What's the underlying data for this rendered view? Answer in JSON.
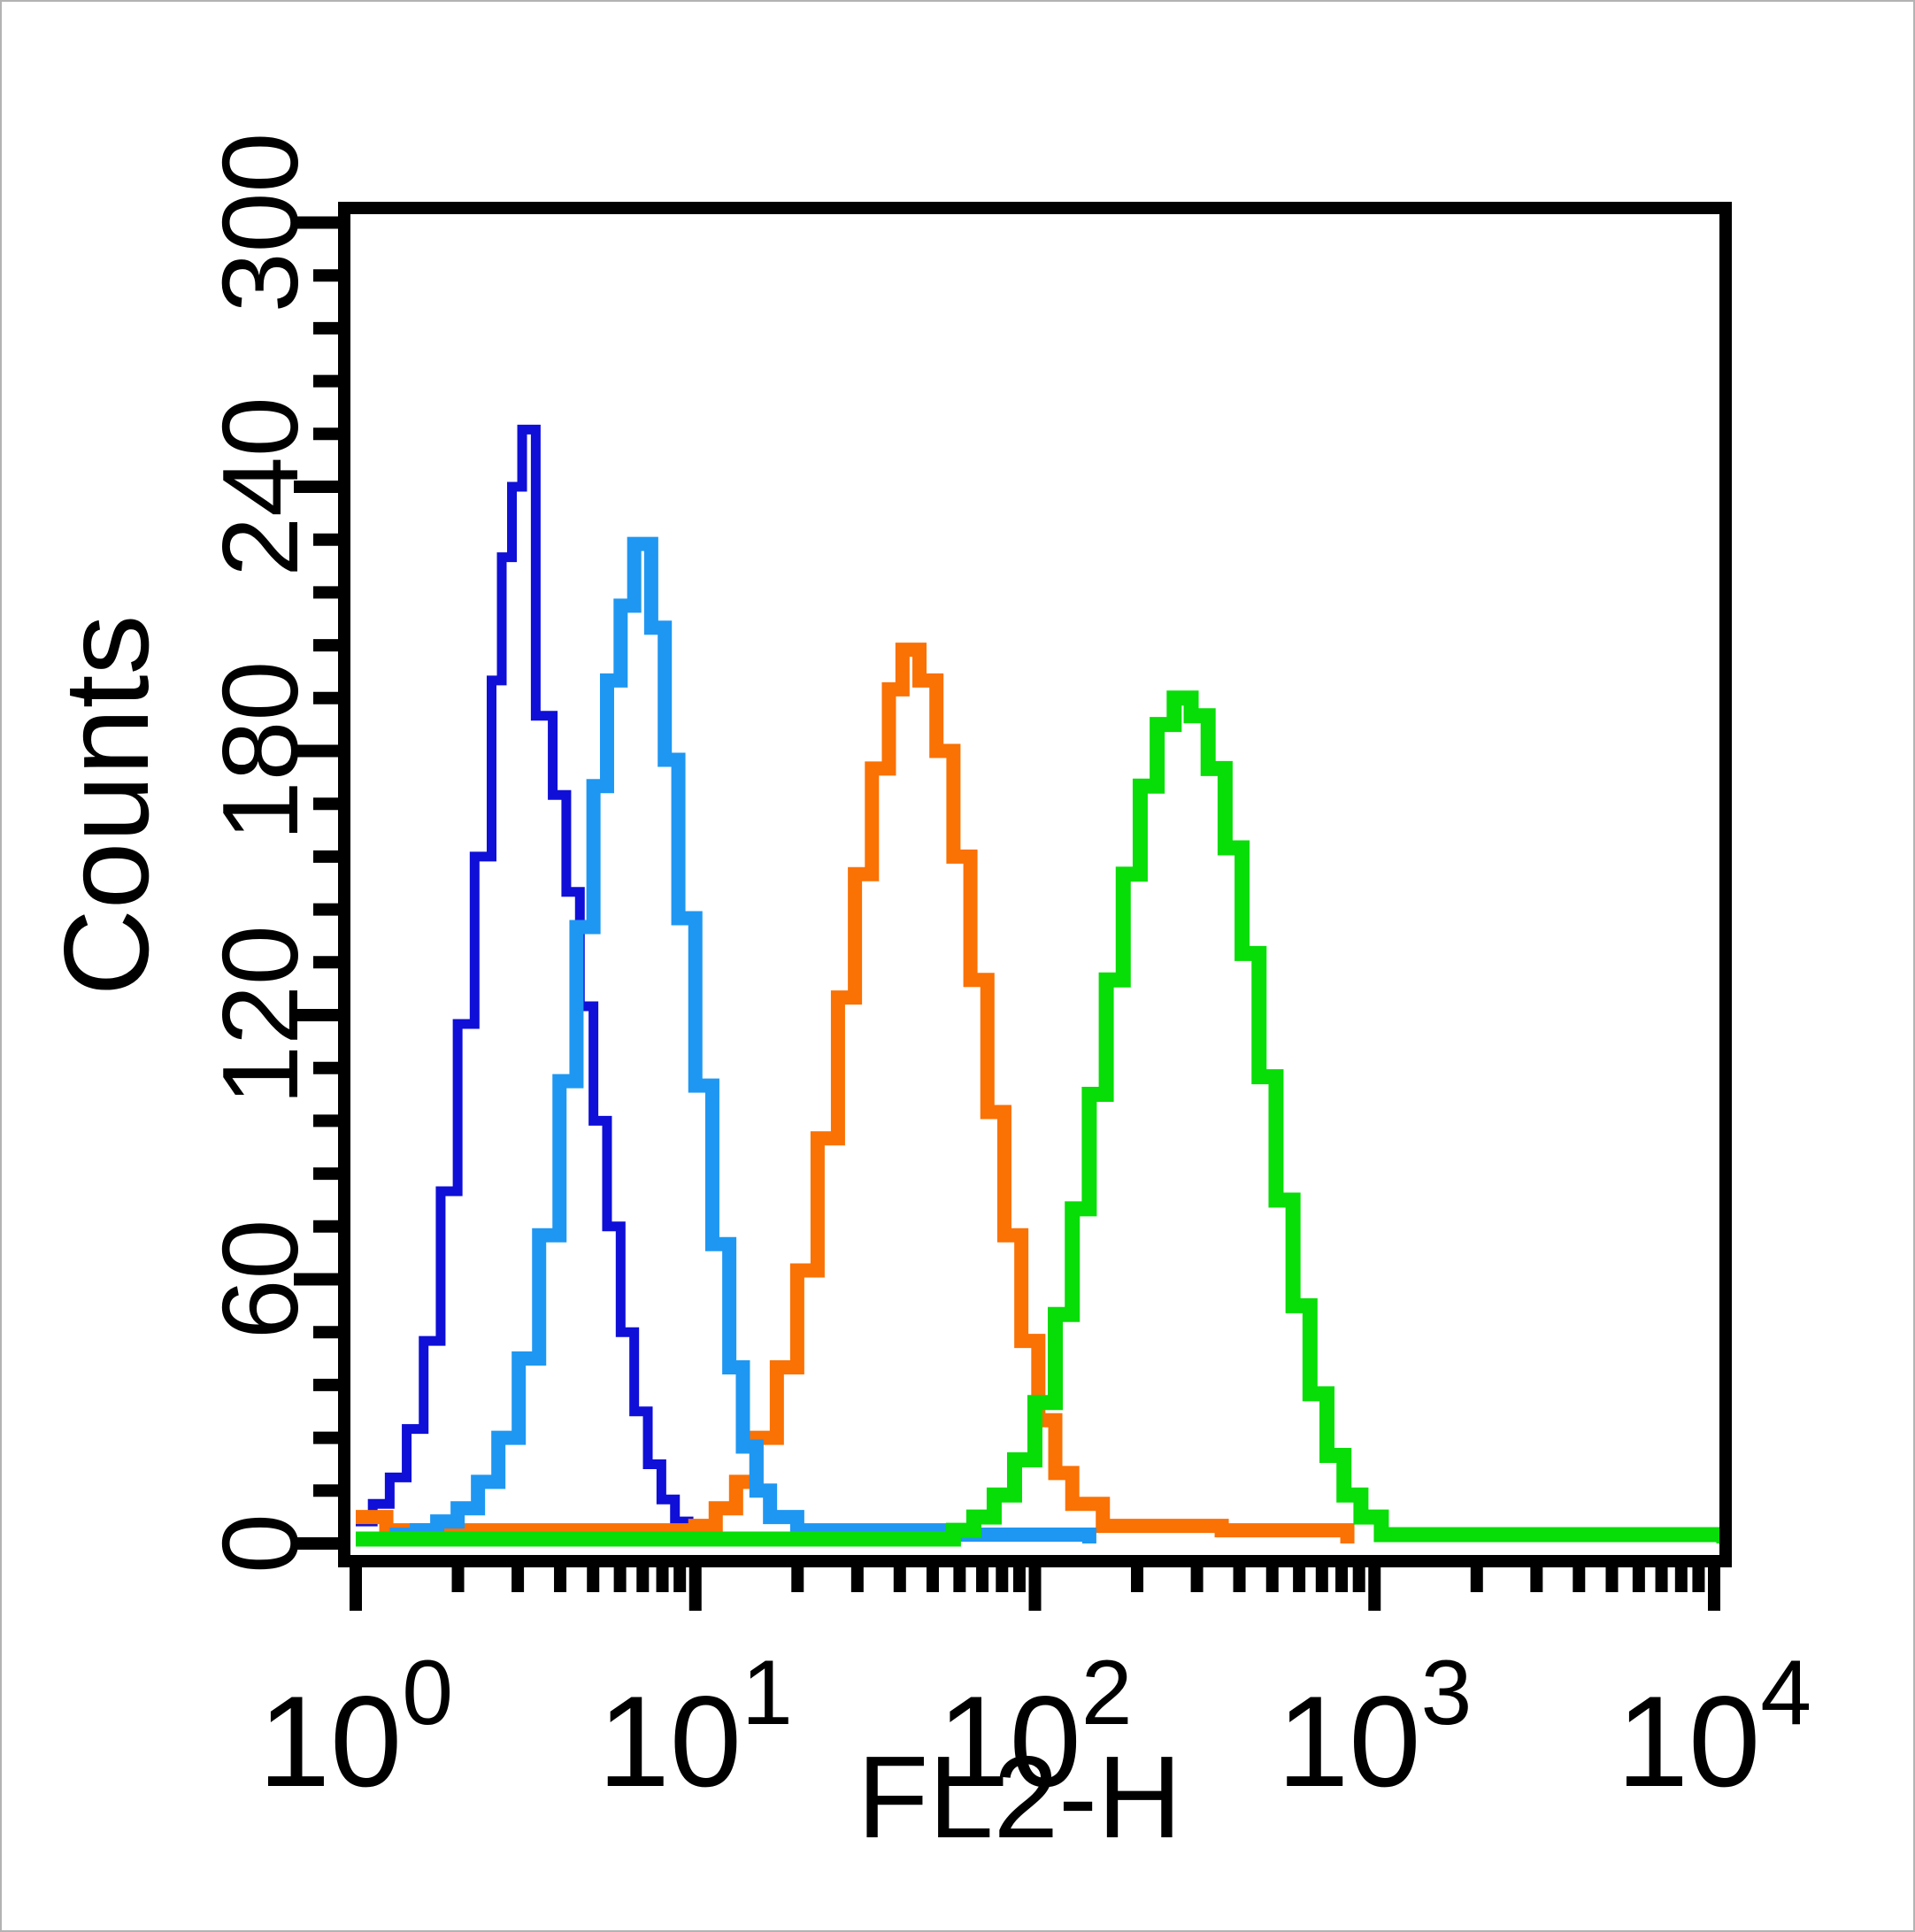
{
  "figure": {
    "background": "#ffffff",
    "outer_border_color": "#b3b3b3",
    "axis_color": "#000000"
  },
  "chart_data": {
    "type": "histogram-step-outline",
    "title": "",
    "xlabel": "FL2-H",
    "ylabel": "Counts",
    "grid": false,
    "legend": null,
    "frame": true,
    "x_axis": {
      "scale": "log10",
      "min": 1,
      "max": 10000,
      "tick_base": "10",
      "tick_exponents": [
        0,
        1,
        2,
        3,
        4
      ],
      "minor_ticks": "mantissa 2-9 each decade"
    },
    "y_axis": {
      "min": 0,
      "max": 300,
      "major_ticks": [
        0,
        60,
        120,
        180,
        240,
        300
      ],
      "tick_labels": [
        "0",
        "60",
        "120",
        "180",
        "240",
        "300"
      ],
      "minor_tick_step": 12
    },
    "series": [
      {
        "name": "navy-histogram",
        "color": "#0f0fd8",
        "line_width": 11,
        "approx_peak": {
          "x": 3.1,
          "count": 253
        },
        "bins_log10_count": [
          [
            0.0,
            5
          ],
          [
            0.05,
            9
          ],
          [
            0.1,
            15
          ],
          [
            0.15,
            26
          ],
          [
            0.2,
            46
          ],
          [
            0.25,
            80
          ],
          [
            0.3,
            118
          ],
          [
            0.35,
            156
          ],
          [
            0.4,
            196
          ],
          [
            0.43,
            224
          ],
          [
            0.46,
            240
          ],
          [
            0.49,
            253
          ],
          [
            0.53,
            188
          ],
          [
            0.58,
            170
          ],
          [
            0.62,
            148
          ],
          [
            0.66,
            122
          ],
          [
            0.7,
            96
          ],
          [
            0.74,
            72
          ],
          [
            0.78,
            48
          ],
          [
            0.82,
            30
          ],
          [
            0.86,
            18
          ],
          [
            0.9,
            10
          ],
          [
            0.94,
            5
          ],
          [
            0.98,
            2
          ],
          [
            1.02,
            0
          ]
        ]
      },
      {
        "name": "orange-histogram",
        "color": "#fa7104",
        "line_width": 16,
        "approx_peak": {
          "x": 41,
          "count": 203
        },
        "bins_log10_count": [
          [
            0.0,
            6
          ],
          [
            0.09,
            3
          ],
          [
            1.0,
            4
          ],
          [
            1.06,
            8
          ],
          [
            1.12,
            14
          ],
          [
            1.18,
            24
          ],
          [
            1.24,
            40
          ],
          [
            1.3,
            62
          ],
          [
            1.36,
            92
          ],
          [
            1.42,
            124
          ],
          [
            1.47,
            152
          ],
          [
            1.52,
            176
          ],
          [
            1.57,
            194
          ],
          [
            1.61,
            203
          ],
          [
            1.66,
            196
          ],
          [
            1.71,
            180
          ],
          [
            1.76,
            156
          ],
          [
            1.81,
            128
          ],
          [
            1.86,
            98
          ],
          [
            1.91,
            70
          ],
          [
            1.96,
            46
          ],
          [
            2.01,
            28
          ],
          [
            2.06,
            16
          ],
          [
            2.11,
            9
          ],
          [
            2.2,
            4
          ],
          [
            2.55,
            3
          ],
          [
            2.92,
            0
          ]
        ]
      },
      {
        "name": "light-blue-histogram",
        "color": "#1e97f2",
        "line_width": 16,
        "approx_peak": {
          "x": 6.6,
          "count": 227
        },
        "bins_log10_count": [
          [
            0.1,
            2
          ],
          [
            0.18,
            3
          ],
          [
            0.24,
            5
          ],
          [
            0.3,
            8
          ],
          [
            0.36,
            14
          ],
          [
            0.42,
            24
          ],
          [
            0.48,
            42
          ],
          [
            0.54,
            70
          ],
          [
            0.6,
            105
          ],
          [
            0.65,
            140
          ],
          [
            0.7,
            172
          ],
          [
            0.74,
            196
          ],
          [
            0.78,
            213
          ],
          [
            0.82,
            227
          ],
          [
            0.87,
            208
          ],
          [
            0.91,
            178
          ],
          [
            0.95,
            142
          ],
          [
            1.0,
            104
          ],
          [
            1.05,
            68
          ],
          [
            1.1,
            40
          ],
          [
            1.14,
            22
          ],
          [
            1.18,
            12
          ],
          [
            1.22,
            6
          ],
          [
            1.3,
            3
          ],
          [
            1.75,
            2
          ],
          [
            2.16,
            0
          ]
        ]
      },
      {
        "name": "green-histogram",
        "color": "#07dd07",
        "line_width": 17,
        "approx_peak": {
          "x": 270,
          "count": 192
        },
        "bins_log10_count": [
          [
            0.0,
            1
          ],
          [
            1.76,
            3
          ],
          [
            1.82,
            6
          ],
          [
            1.88,
            11
          ],
          [
            1.94,
            19
          ],
          [
            2.0,
            32
          ],
          [
            2.06,
            52
          ],
          [
            2.11,
            76
          ],
          [
            2.16,
            102
          ],
          [
            2.21,
            128
          ],
          [
            2.26,
            152
          ],
          [
            2.31,
            172
          ],
          [
            2.36,
            186
          ],
          [
            2.41,
            192
          ],
          [
            2.46,
            188
          ],
          [
            2.51,
            176
          ],
          [
            2.56,
            158
          ],
          [
            2.61,
            134
          ],
          [
            2.66,
            106
          ],
          [
            2.71,
            78
          ],
          [
            2.76,
            54
          ],
          [
            2.81,
            34
          ],
          [
            2.86,
            20
          ],
          [
            2.91,
            11
          ],
          [
            2.96,
            6
          ],
          [
            3.02,
            2
          ],
          [
            4.03,
            0
          ]
        ]
      }
    ]
  }
}
